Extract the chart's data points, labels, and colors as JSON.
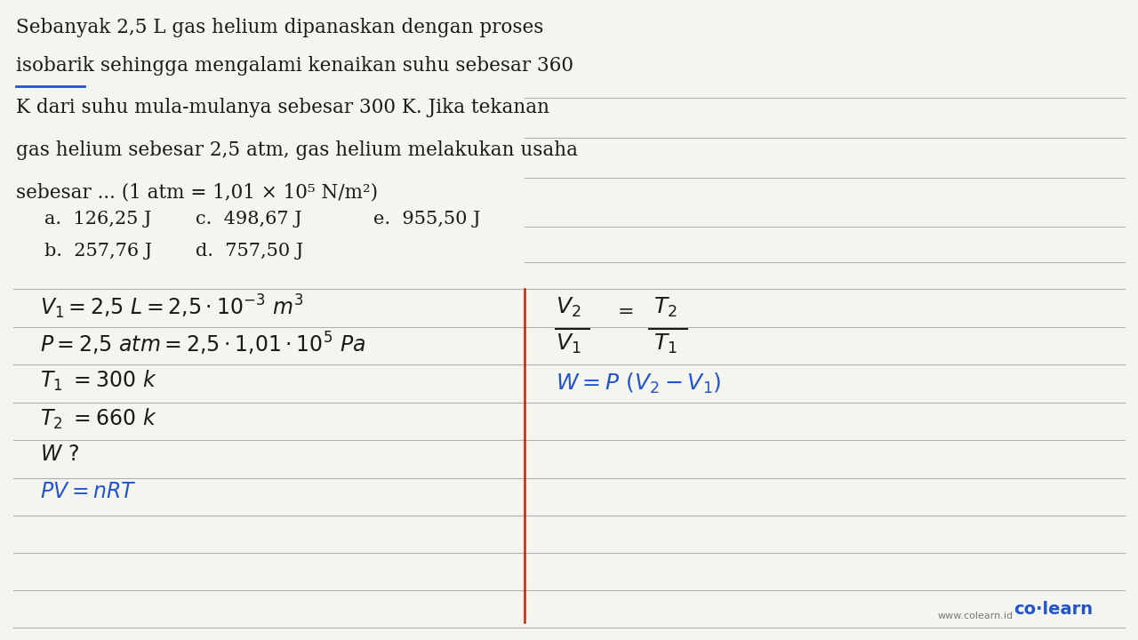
{
  "background_color": "#f5f5f0",
  "text_color": "#1a1a1a",
  "blue_color": "#2255cc",
  "red_color": "#cc2200",
  "underline_color": "#2255cc",
  "figsize": [
    12.8,
    7.2
  ],
  "dpi": 100,
  "q_lines": [
    "Sebanyak 2,5 L gas helium dipanaskan dengan proses",
    "isobarik sehingga mengalami kenaikan suhu sebesar 360",
    "K dari suhu mula-mulanya sebesar 300 K. Jika tekanan",
    "gas helium sebesar 2,5 atm, gas helium melakukan usaha",
    "sebesar ... (1 atm = 1,01 × 10⁵ N/m²)"
  ],
  "choice_row1": [
    "a.  126,25 J",
    "c.  498,67 J",
    "e.  955,50 J"
  ],
  "choice_row2": [
    "b.  257,76 J",
    "d.  757,50 J"
  ],
  "brand_url": "www.colearn.id",
  "brand_name": "co·learn"
}
